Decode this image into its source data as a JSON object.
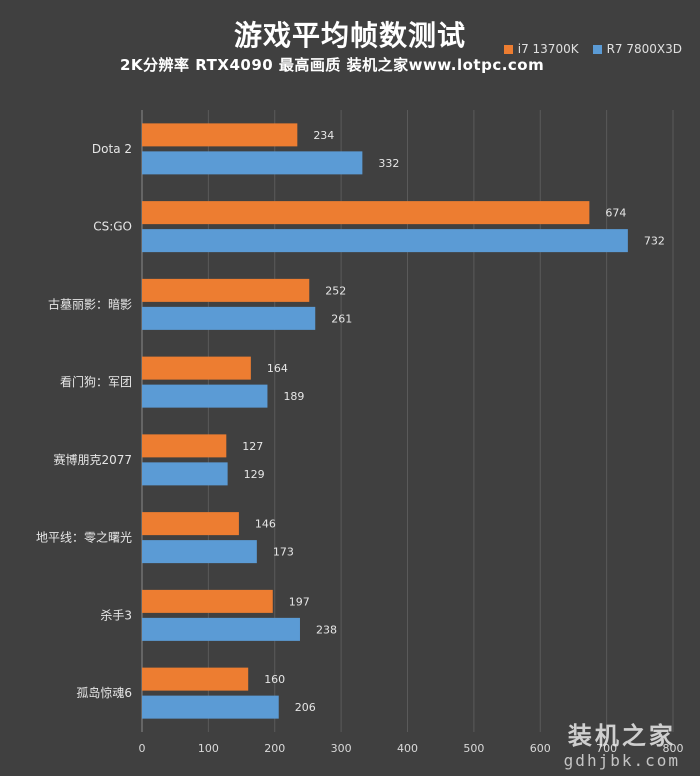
{
  "chart_data": {
    "type": "bar",
    "orientation": "horizontal",
    "title": "游戏平均帧数测试",
    "subtitle": "2K分辨率 RTX4090 最高画质 装机之家www.lotpc.com",
    "categories": [
      "Dota 2",
      "CS:GO",
      "古墓丽影：暗影",
      "看门狗：军团",
      "赛博朋克2077",
      "地平线：零之曙光",
      "杀手3",
      "孤岛惊魂6"
    ],
    "series": [
      {
        "name": "i7 13700K",
        "color": "#ed7d31",
        "values": [
          234,
          674,
          252,
          164,
          127,
          146,
          197,
          160
        ]
      },
      {
        "name": "R7 7800X3D",
        "color": "#5b9bd5",
        "values": [
          332,
          732,
          261,
          189,
          129,
          173,
          238,
          206
        ]
      }
    ],
    "xlim": [
      0,
      800
    ],
    "xticks": [
      0,
      100,
      200,
      300,
      400,
      500,
      600,
      700,
      800
    ],
    "grid": true,
    "legend_position": "top-right"
  },
  "watermark": {
    "text_cn": "装机之家",
    "text_url": "gdhjbk.com"
  }
}
